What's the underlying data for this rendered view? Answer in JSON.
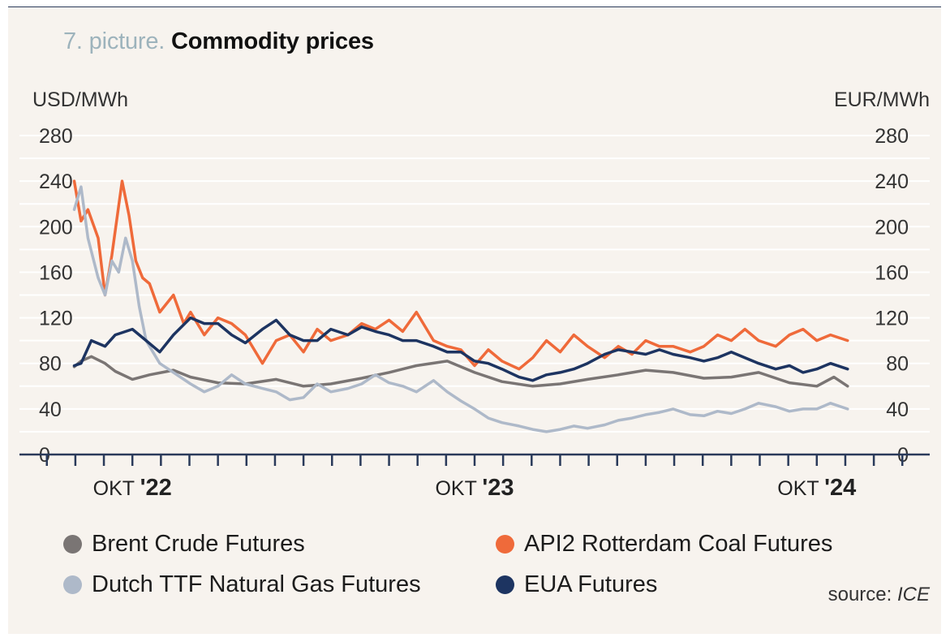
{
  "title": {
    "number": "7. picture.",
    "text": "Commodity prices"
  },
  "source": {
    "prefix": "source:",
    "name": "ICE"
  },
  "colors": {
    "brent": "#7a7574",
    "coal": "#ef6a3a",
    "ttf": "#aeb9c9",
    "eua": "#1d3461",
    "grid": "#ffffff",
    "axis": "#2a3a5a",
    "text": "#333333"
  },
  "chart_data": {
    "type": "line",
    "y_left_label": "USD/MWh",
    "y_right_label": "EUR/MWh",
    "y_ticks": [
      "0",
      "40",
      "80",
      "120",
      "160",
      "200",
      "240",
      "280"
    ],
    "ylim": [
      0,
      280
    ],
    "grid": true,
    "x_tick_labels": [
      {
        "label": "OKT",
        "year": "'22",
        "x": 2022.75
      },
      {
        "label": "OKT",
        "year": "'23",
        "x": 2023.75
      },
      {
        "label": "OKT",
        "year": "'24",
        "x": 2024.75
      }
    ],
    "xlim": [
      2022.42,
      2025.08
    ],
    "legend": [
      "Brent Crude Futures",
      "API2 Rotterdam Coal Futures",
      "Dutch TTF Natural Gas Futures",
      "EUA Futures"
    ],
    "series": [
      {
        "name": "Brent Crude Futures",
        "key": "brent",
        "axis": "left",
        "x": [
          2022.58,
          2022.6,
          2022.63,
          2022.67,
          2022.7,
          2022.75,
          2022.8,
          2022.87,
          2022.92,
          2023.0,
          2023.08,
          2023.17,
          2023.25,
          2023.33,
          2023.42,
          2023.5,
          2023.58,
          2023.67,
          2023.71,
          2023.75,
          2023.83,
          2023.92,
          2024.0,
          2024.08,
          2024.17,
          2024.25,
          2024.33,
          2024.42,
          2024.5,
          2024.58,
          2024.67,
          2024.75,
          2024.8,
          2024.84
        ],
        "y": [
          77,
          82,
          86,
          80,
          73,
          66,
          70,
          74,
          68,
          63,
          62,
          66,
          60,
          62,
          67,
          72,
          78,
          82,
          77,
          72,
          64,
          60,
          62,
          66,
          70,
          74,
          72,
          67,
          68,
          72,
          63,
          60,
          68,
          60
        ]
      },
      {
        "name": "API2 Rotterdam Coal Futures",
        "key": "coal",
        "axis": "left",
        "x": [
          2022.58,
          2022.6,
          2022.62,
          2022.65,
          2022.67,
          2022.69,
          2022.72,
          2022.74,
          2022.76,
          2022.78,
          2022.8,
          2022.83,
          2022.87,
          2022.9,
          2022.92,
          2022.96,
          2023.0,
          2023.04,
          2023.08,
          2023.13,
          2023.17,
          2023.21,
          2023.25,
          2023.29,
          2023.33,
          2023.38,
          2023.42,
          2023.46,
          2023.5,
          2023.54,
          2023.58,
          2023.63,
          2023.67,
          2023.71,
          2023.75,
          2023.79,
          2023.83,
          2023.88,
          2023.92,
          2023.96,
          2024.0,
          2024.04,
          2024.08,
          2024.13,
          2024.17,
          2024.21,
          2024.25,
          2024.29,
          2024.33,
          2024.38,
          2024.42,
          2024.46,
          2024.5,
          2024.54,
          2024.58,
          2024.63,
          2024.67,
          2024.71,
          2024.75,
          2024.79,
          2024.84
        ],
        "y": [
          240,
          205,
          215,
          190,
          140,
          175,
          240,
          210,
          170,
          155,
          150,
          125,
          140,
          115,
          125,
          105,
          120,
          115,
          105,
          80,
          100,
          105,
          90,
          110,
          100,
          105,
          115,
          110,
          118,
          108,
          125,
          100,
          95,
          92,
          78,
          92,
          82,
          75,
          85,
          100,
          90,
          105,
          95,
          85,
          95,
          88,
          100,
          95,
          95,
          90,
          95,
          105,
          100,
          110,
          100,
          95,
          105,
          110,
          100,
          105,
          100
        ]
      },
      {
        "name": "Dutch TTF Natural Gas Futures",
        "key": "ttf",
        "axis": "right",
        "x": [
          2022.58,
          2022.6,
          2022.62,
          2022.65,
          2022.67,
          2022.69,
          2022.71,
          2022.73,
          2022.75,
          2022.77,
          2022.79,
          2022.81,
          2022.83,
          2022.87,
          2022.92,
          2022.96,
          2023.0,
          2023.04,
          2023.08,
          2023.13,
          2023.17,
          2023.21,
          2023.25,
          2023.29,
          2023.33,
          2023.38,
          2023.42,
          2023.46,
          2023.5,
          2023.54,
          2023.58,
          2023.63,
          2023.67,
          2023.71,
          2023.75,
          2023.79,
          2023.83,
          2023.88,
          2023.92,
          2023.96,
          2024.0,
          2024.04,
          2024.08,
          2024.13,
          2024.17,
          2024.21,
          2024.25,
          2024.29,
          2024.33,
          2024.38,
          2024.42,
          2024.46,
          2024.5,
          2024.54,
          2024.58,
          2024.63,
          2024.67,
          2024.71,
          2024.75,
          2024.79,
          2024.84
        ],
        "y": [
          215,
          235,
          190,
          155,
          140,
          170,
          160,
          190,
          170,
          130,
          100,
          90,
          80,
          72,
          62,
          55,
          60,
          70,
          62,
          58,
          55,
          48,
          50,
          62,
          55,
          58,
          62,
          70,
          63,
          60,
          55,
          65,
          55,
          47,
          40,
          32,
          28,
          25,
          22,
          20,
          22,
          25,
          23,
          26,
          30,
          32,
          35,
          37,
          40,
          35,
          34,
          38,
          36,
          40,
          45,
          42,
          38,
          40,
          40,
          45,
          40
        ]
      },
      {
        "name": "EUA Futures",
        "key": "eua",
        "axis": "right",
        "x": [
          2022.58,
          2022.6,
          2022.63,
          2022.67,
          2022.7,
          2022.75,
          2022.79,
          2022.83,
          2022.87,
          2022.92,
          2022.96,
          2023.0,
          2023.04,
          2023.08,
          2023.13,
          2023.17,
          2023.21,
          2023.25,
          2023.29,
          2023.33,
          2023.38,
          2023.42,
          2023.46,
          2023.5,
          2023.54,
          2023.58,
          2023.63,
          2023.67,
          2023.71,
          2023.75,
          2023.79,
          2023.83,
          2023.88,
          2023.92,
          2023.96,
          2024.0,
          2024.04,
          2024.08,
          2024.13,
          2024.17,
          2024.21,
          2024.25,
          2024.29,
          2024.33,
          2024.38,
          2024.42,
          2024.46,
          2024.5,
          2024.54,
          2024.58,
          2024.63,
          2024.67,
          2024.71,
          2024.75,
          2024.79,
          2024.84
        ],
        "y": [
          78,
          80,
          100,
          95,
          105,
          110,
          100,
          90,
          105,
          120,
          115,
          115,
          105,
          98,
          110,
          118,
          105,
          100,
          100,
          110,
          105,
          112,
          108,
          105,
          100,
          100,
          95,
          90,
          90,
          82,
          80,
          75,
          68,
          65,
          70,
          72,
          75,
          80,
          88,
          92,
          90,
          88,
          92,
          88,
          85,
          82,
          85,
          90,
          85,
          80,
          75,
          78,
          72,
          75,
          80,
          75
        ]
      }
    ]
  }
}
